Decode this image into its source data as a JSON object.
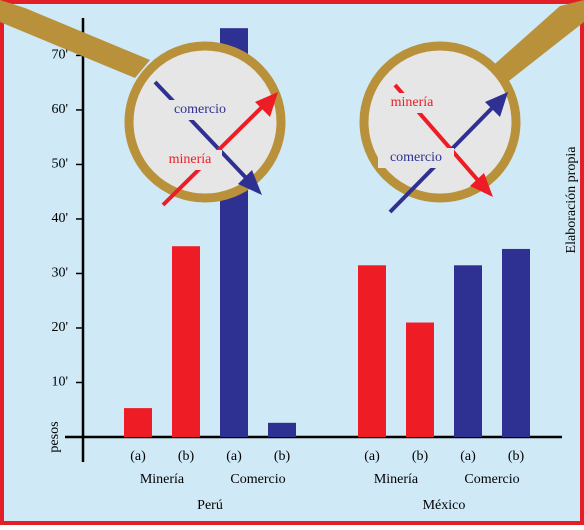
{
  "chart_data": {
    "type": "grouped-bar",
    "ylabel": "pesos",
    "source": "Elaboración propia",
    "ylim": [
      0,
      76.5
    ],
    "yticks": [
      {
        "value": 10,
        "label": "10'"
      },
      {
        "value": 20,
        "label": "20'"
      },
      {
        "value": 30,
        "label": "30'"
      },
      {
        "value": 40,
        "label": "40'"
      },
      {
        "value": 50,
        "label": "50'"
      },
      {
        "value": 60,
        "label": "60'"
      },
      {
        "value": 70,
        "label": "70'"
      }
    ],
    "groups": [
      {
        "name": "Perú",
        "subgroups": [
          {
            "name": "Minería",
            "color": "#ee1c25",
            "categories": [
              "(a)",
              "(b)"
            ],
            "values": [
              5.3,
              35
            ]
          },
          {
            "name": "Comercio",
            "color": "#2e3192",
            "categories": [
              "(a)",
              "(b)"
            ],
            "values": [
              75,
              2.6
            ]
          }
        ]
      },
      {
        "name": "México",
        "subgroups": [
          {
            "name": "Minería",
            "color": "#ee1c25",
            "categories": [
              "(a)",
              "(b)"
            ],
            "values": [
              31.5,
              21
            ]
          },
          {
            "name": "Comercio",
            "color": "#2e3192",
            "categories": [
              "(a)",
              "(b)"
            ],
            "values": [
              31.5,
              34.5
            ]
          }
        ]
      }
    ],
    "annotations": [
      {
        "text": "comercio",
        "color": "#2e3192"
      },
      {
        "text": "minería",
        "color": "#ee1c25"
      },
      {
        "text": "minería",
        "color": "#ee1c25"
      },
      {
        "text": "comercio",
        "color": "#2e3192"
      }
    ]
  }
}
